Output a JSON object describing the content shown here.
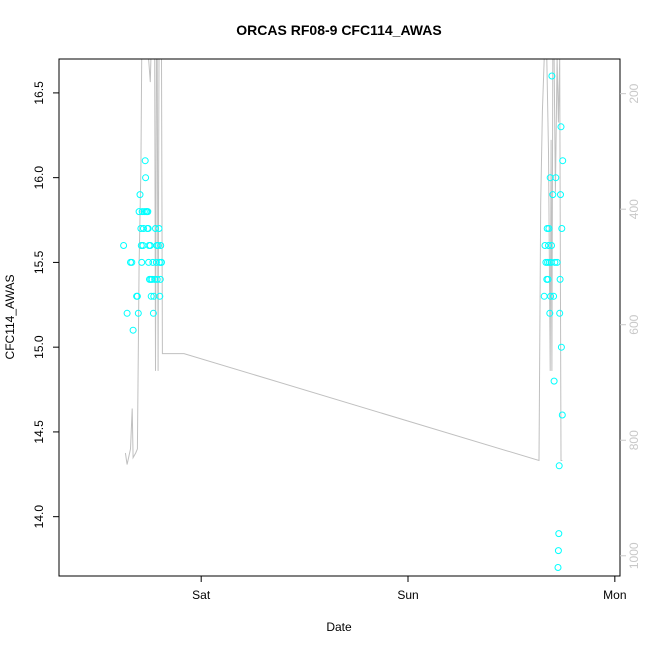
{
  "chart_data": {
    "type": "scatter",
    "title": "ORCAS RF08-9 CFC114_AWAS",
    "xlabel": "Date",
    "ylabel": "CFC114_AWAS",
    "x_tick_labels": [
      "Sat",
      "Sun",
      "Mon"
    ],
    "y_ticks": [
      14.0,
      14.5,
      15.0,
      15.5,
      16.0,
      16.5
    ],
    "y_tick_labels": [
      "14.0",
      "14.5",
      "15.0",
      "15.5",
      "16.0",
      "16.5"
    ],
    "y_right_ticks": [
      200,
      400,
      600,
      800,
      1000
    ],
    "y_right_tick_labels": [
      "200",
      "400",
      "600",
      "800",
      "1000"
    ],
    "ylim": [
      13.65,
      16.7
    ],
    "y_right_lim": [
      140,
      1035
    ],
    "y_right_inverted": true,
    "xlim_hours": [
      -16.5,
      48.6
    ],
    "x_tick_hours": [
      0,
      24,
      48
    ],
    "colors": {
      "points": "#00ffff",
      "line": "#c0c0c0",
      "right_axis": "#c8c8c8",
      "axes": "#000000"
    },
    "series": [
      {
        "kind": "points",
        "points": [
          [
            -9.0,
            15.6
          ],
          [
            -8.6,
            15.2
          ],
          [
            -8.2,
            15.5
          ],
          [
            -8.05,
            15.5
          ],
          [
            -7.9,
            15.1
          ],
          [
            -7.5,
            15.3
          ],
          [
            -7.4,
            15.3
          ],
          [
            -7.3,
            15.2
          ],
          [
            -7.2,
            15.8
          ],
          [
            -7.1,
            15.9
          ],
          [
            -7.0,
            15.7
          ],
          [
            -6.95,
            15.6
          ],
          [
            -6.9,
            15.5
          ],
          [
            -6.85,
            15.8
          ],
          [
            -6.75,
            15.6
          ],
          [
            -6.7,
            15.7
          ],
          [
            -6.6,
            15.8
          ],
          [
            -6.5,
            16.1
          ],
          [
            -6.45,
            16.0
          ],
          [
            -6.4,
            15.8
          ],
          [
            -6.3,
            15.8
          ],
          [
            -6.25,
            15.7
          ],
          [
            -6.2,
            15.8
          ],
          [
            -6.15,
            15.7
          ],
          [
            -6.1,
            15.5
          ],
          [
            -6.05,
            15.6
          ],
          [
            -6.0,
            15.4
          ],
          [
            -5.9,
            15.6
          ],
          [
            -5.85,
            15.4
          ],
          [
            -5.8,
            15.3
          ],
          [
            -5.7,
            15.4
          ],
          [
            -5.6,
            15.5
          ],
          [
            -5.55,
            15.2
          ],
          [
            -5.5,
            15.3
          ],
          [
            -5.4,
            15.4
          ],
          [
            -5.3,
            15.7
          ],
          [
            -5.2,
            15.5
          ],
          [
            -5.15,
            15.6
          ],
          [
            -5.1,
            15.4
          ],
          [
            -5.0,
            15.6
          ],
          [
            -4.9,
            15.7
          ],
          [
            -4.85,
            15.5
          ],
          [
            -4.8,
            15.3
          ],
          [
            -4.75,
            15.4
          ],
          [
            -4.7,
            15.6
          ],
          [
            -4.65,
            15.5
          ],
          [
            -4.6,
            15.5
          ],
          [
            39.8,
            15.3
          ],
          [
            39.9,
            15.6
          ],
          [
            40.0,
            15.5
          ],
          [
            40.1,
            15.4
          ],
          [
            40.15,
            15.7
          ],
          [
            40.2,
            15.5
          ],
          [
            40.25,
            15.4
          ],
          [
            40.3,
            15.6
          ],
          [
            40.35,
            15.7
          ],
          [
            40.4,
            15.5
          ],
          [
            40.45,
            15.2
          ],
          [
            40.5,
            16.0
          ],
          [
            40.55,
            15.3
          ],
          [
            40.6,
            15.5
          ],
          [
            40.65,
            15.6
          ],
          [
            40.7,
            16.6
          ],
          [
            40.8,
            15.9
          ],
          [
            40.9,
            15.3
          ],
          [
            40.95,
            14.8
          ],
          [
            41.05,
            15.5
          ],
          [
            41.15,
            16.0
          ],
          [
            41.3,
            15.5
          ],
          [
            41.4,
            13.7
          ],
          [
            41.45,
            13.8
          ],
          [
            41.5,
            13.9
          ],
          [
            41.55,
            14.3
          ],
          [
            41.6,
            15.2
          ],
          [
            41.65,
            15.4
          ],
          [
            41.7,
            15.9
          ],
          [
            41.75,
            16.3
          ],
          [
            41.8,
            15.0
          ],
          [
            41.85,
            15.7
          ],
          [
            41.9,
            14.6
          ],
          [
            41.95,
            16.1
          ]
        ]
      },
      {
        "kind": "line",
        "points": [
          [
            -8.8,
            822
          ],
          [
            -8.6,
            842
          ],
          [
            -8.2,
            815
          ],
          [
            -8.0,
            745
          ],
          [
            -7.9,
            830
          ],
          [
            -7.6,
            822
          ],
          [
            -7.4,
            815
          ],
          [
            -7.2,
            495
          ],
          [
            -7.0,
            330
          ],
          [
            -6.9,
            140
          ],
          [
            -6.8,
            140
          ],
          [
            -6.7,
            90
          ],
          [
            -6.6,
            140
          ],
          [
            -6.5,
            110
          ],
          [
            -6.3,
            140
          ],
          [
            -6.2,
            100
          ],
          [
            -6.1,
            140
          ],
          [
            -5.9,
            180
          ],
          [
            -5.8,
            120
          ],
          [
            -5.7,
            140
          ],
          [
            -5.6,
            140
          ],
          [
            -5.4,
            140
          ],
          [
            -5.3,
            680
          ],
          [
            -5.2,
            140
          ],
          [
            -5.1,
            120
          ],
          [
            -5.0,
            680
          ],
          [
            -4.9,
            140
          ],
          [
            -4.8,
            140
          ],
          [
            -4.6,
            140
          ],
          [
            -4.5,
            650
          ],
          [
            -2.0,
            650
          ],
          [
            39.2,
            835
          ],
          [
            39.4,
            390
          ],
          [
            39.6,
            230
          ],
          [
            39.8,
            140
          ],
          [
            40.0,
            120
          ],
          [
            40.1,
            140
          ],
          [
            40.3,
            300
          ],
          [
            40.5,
            680
          ],
          [
            40.6,
            280
          ],
          [
            40.7,
            680
          ],
          [
            40.8,
            140
          ],
          [
            40.95,
            140
          ],
          [
            41.1,
            370
          ],
          [
            41.3,
            140
          ],
          [
            41.45,
            250
          ],
          [
            41.6,
            140
          ],
          [
            41.75,
            835
          ],
          [
            41.9,
            835
          ]
        ]
      }
    ]
  }
}
